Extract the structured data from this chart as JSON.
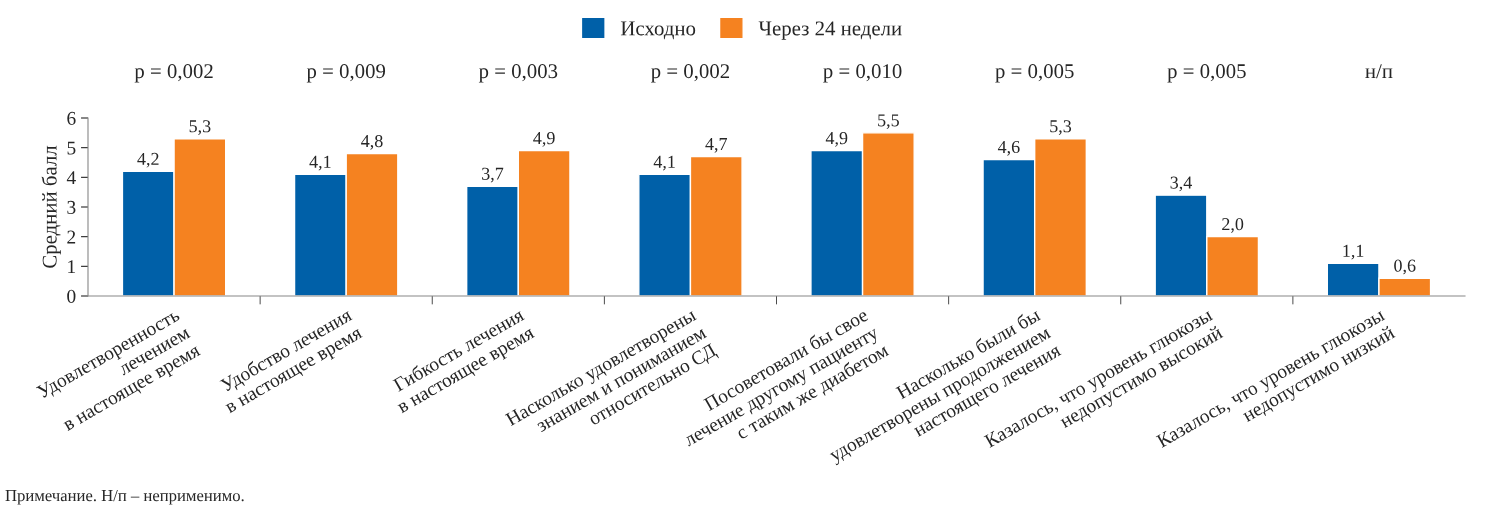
{
  "chart_data": {
    "type": "bar",
    "ylabel": "Средний балл",
    "categories": [
      "Удовлетворенность\nлечением\nв настоящее время",
      "Удобство лечения\nв настоящее время",
      "Гибкость лечения\nв настоящее время",
      "Насколько удовлетворены\nзнанием и пониманием\nотносительно СД",
      "Посоветовали бы свое\nлечение другому пациенту\nс таким же диабетом",
      "Насколько были бы\nудовлетворены продолжением\nнастоящего лечения",
      "Казалось, что уровень глюкозы\nнедопустимо высокий",
      "Казалось, что уровень глюкозы\nнедопустимо низкий"
    ],
    "series": [
      {
        "name": "Исходно",
        "color": "#0060a8",
        "values": [
          4.2,
          4.1,
          3.7,
          4.1,
          4.9,
          4.6,
          3.4,
          1.1
        ]
      },
      {
        "name": "Через 24 недели",
        "color": "#f58220",
        "values": [
          5.3,
          4.8,
          4.9,
          4.7,
          5.5,
          5.3,
          2.0,
          0.6
        ]
      }
    ],
    "value_labels": [
      [
        "4,2",
        "4,1",
        "3,7",
        "4,1",
        "4,9",
        "4,6",
        "3,4",
        "1,1"
      ],
      [
        "5,3",
        "4,8",
        "4,9",
        "4,7",
        "5,5",
        "5,3",
        "2,0",
        "0,6"
      ]
    ],
    "ylim": [
      0,
      6
    ],
    "yticks": [
      0,
      1,
      2,
      3,
      4,
      5,
      6
    ],
    "grid": false,
    "legend": "top",
    "annotations": [
      "p = 0,002",
      "p = 0,009",
      "p = 0,003",
      "p = 0,002",
      "p = 0,010",
      "p = 0,005",
      "p = 0,005",
      "н/п",
      "Примечание. Н/п – неприменимо."
    ]
  }
}
